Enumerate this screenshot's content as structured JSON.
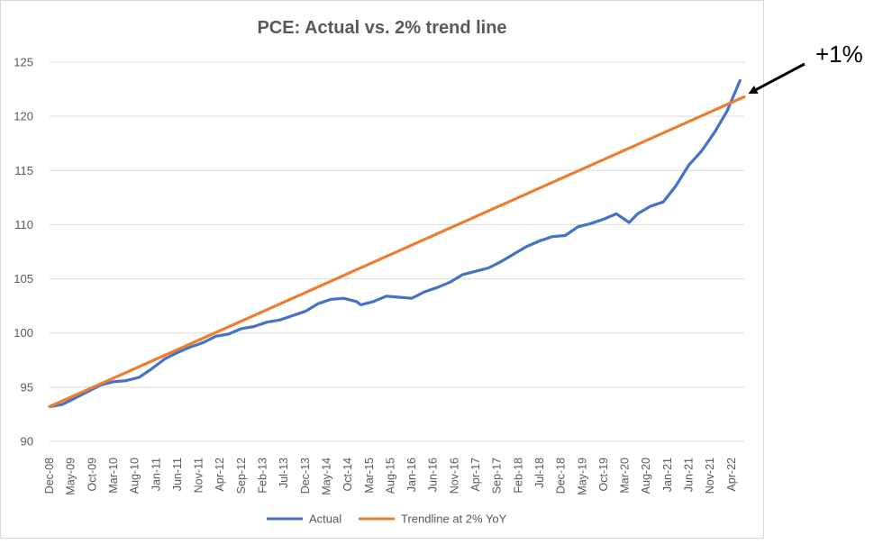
{
  "chart_data": {
    "type": "line",
    "title": "PCE: Actual vs. 2% trend line",
    "xlabel": "",
    "ylabel": "",
    "ylim": [
      90,
      125
    ],
    "yticks": [
      90,
      95,
      100,
      105,
      110,
      115,
      120,
      125
    ],
    "x_start": "Dec-08",
    "x_end": "Jul-22",
    "xtick_labels": [
      "Dec-08",
      "May-09",
      "Oct-09",
      "Mar-10",
      "Aug-10",
      "Jan-11",
      "Jun-11",
      "Nov-11",
      "Apr-12",
      "Sep-12",
      "Feb-13",
      "Jul-13",
      "Dec-13",
      "May-14",
      "Oct-14",
      "Mar-15",
      "Aug-15",
      "Jan-16",
      "Jun-16",
      "Nov-16",
      "Apr-17",
      "Sep-17",
      "Feb-18",
      "Jul-18",
      "Dec-18",
      "May-19",
      "Oct-19",
      "Mar-20",
      "Aug-20",
      "Jan-21",
      "Jun-21",
      "Nov-21",
      "Apr-22"
    ],
    "grid": "horizontal",
    "legend": "bottom",
    "colors": {
      "actual": "#4472C4",
      "trend": "#ED7D31"
    },
    "series": [
      {
        "name": "Actual",
        "x": [
          "Dec-08",
          "Mar-09",
          "Jun-09",
          "Sep-09",
          "Dec-09",
          "Mar-10",
          "Jun-10",
          "Sep-10",
          "Dec-10",
          "Mar-11",
          "Jun-11",
          "Sep-11",
          "Dec-11",
          "Mar-12",
          "Jun-12",
          "Sep-12",
          "Dec-12",
          "Mar-13",
          "Jun-13",
          "Sep-13",
          "Dec-13",
          "Mar-14",
          "Jun-14",
          "Sep-14",
          "Dec-14",
          "Jan-15",
          "Apr-15",
          "Jul-15",
          "Oct-15",
          "Jan-16",
          "Apr-16",
          "Jul-16",
          "Oct-16",
          "Jan-17",
          "Apr-17",
          "Jul-17",
          "Oct-17",
          "Jan-18",
          "Apr-18",
          "Jul-18",
          "Oct-18",
          "Jan-19",
          "Apr-19",
          "Jul-19",
          "Oct-19",
          "Jan-20",
          "Apr-20",
          "Jun-20",
          "Sep-20",
          "Dec-20",
          "Mar-21",
          "Jun-21",
          "Sep-21",
          "Dec-21",
          "Mar-22",
          "Jun-22"
        ],
        "values": [
          93.2,
          93.4,
          94.0,
          94.6,
          95.2,
          95.5,
          95.6,
          95.9,
          96.7,
          97.6,
          98.2,
          98.7,
          99.1,
          99.7,
          99.9,
          100.4,
          100.6,
          101.0,
          101.2,
          101.6,
          102.0,
          102.7,
          103.1,
          103.2,
          102.9,
          102.6,
          102.9,
          103.4,
          103.3,
          103.2,
          103.8,
          104.2,
          104.7,
          105.4,
          105.7,
          106.0,
          106.6,
          107.3,
          108.0,
          108.5,
          108.9,
          109.0,
          109.8,
          110.1,
          110.5,
          111.0,
          110.2,
          111.0,
          111.7,
          112.1,
          113.6,
          115.5,
          116.8,
          118.5,
          120.5,
          123.3
        ]
      },
      {
        "name": "Trendline at 2% YoY",
        "x": [
          "Dec-08",
          "Jul-22"
        ],
        "values": [
          93.2,
          121.8
        ]
      }
    ],
    "annotations": [
      {
        "text": "+1%",
        "points_to": "Jul-22"
      }
    ]
  }
}
